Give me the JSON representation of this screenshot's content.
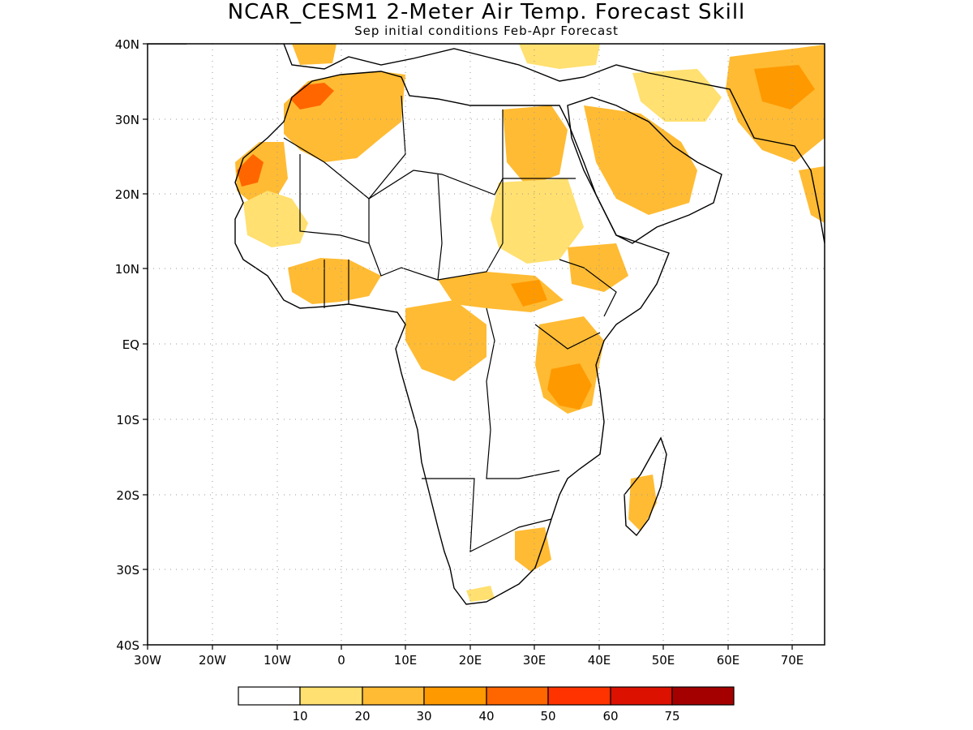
{
  "title": "NCAR_CESM1 2-Meter Air Temp. Forecast Skill",
  "subtitle": "Sep initial conditions  Feb-Apr Forecast",
  "map": {
    "lat_labels": [
      "40N",
      "30N",
      "20N",
      "10N",
      "EQ",
      "10S",
      "20S",
      "30S",
      "40S"
    ],
    "lon_labels": [
      "30W",
      "20W",
      "10W",
      "0",
      "10E",
      "20E",
      "30E",
      "40E",
      "50E",
      "60E",
      "70E"
    ],
    "lat_range": [
      -40,
      40
    ],
    "lon_range": [
      -30,
      75
    ],
    "grid": "dotted"
  },
  "colorbar": {
    "labels": [
      "10",
      "20",
      "30",
      "40",
      "50",
      "60",
      "75"
    ],
    "colors": [
      "#ffffff",
      "#ffe070",
      "#ffbb33",
      "#ff9900",
      "#ff6600",
      "#ff3300",
      "#dd1100",
      "#a50000"
    ]
  }
}
